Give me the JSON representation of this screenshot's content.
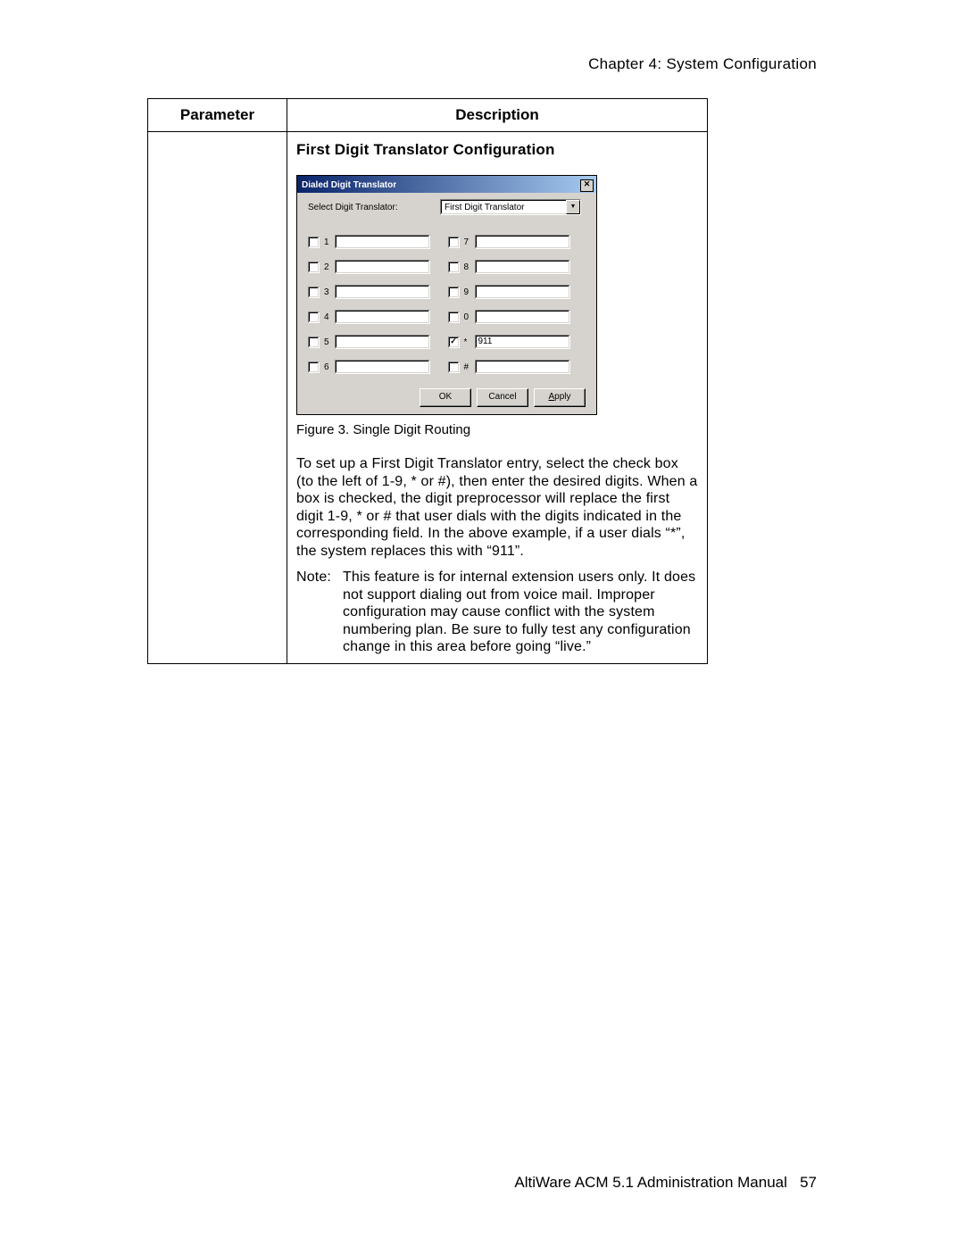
{
  "header": {
    "chapter": "Chapter 4:  System Configuration"
  },
  "table": {
    "col_parameter": "Parameter",
    "col_description": "Description",
    "section_heading": "First Digit Translator Configuration"
  },
  "dialog": {
    "title": "Dialed Digit Translator",
    "select_label": "Select Digit Translator:",
    "select_value": "First Digit Translator",
    "digits_left": [
      {
        "label": "1",
        "checked": false,
        "value": ""
      },
      {
        "label": "2",
        "checked": false,
        "value": ""
      },
      {
        "label": "3",
        "checked": false,
        "value": ""
      },
      {
        "label": "4",
        "checked": false,
        "value": ""
      },
      {
        "label": "5",
        "checked": false,
        "value": ""
      },
      {
        "label": "6",
        "checked": false,
        "value": ""
      }
    ],
    "digits_right": [
      {
        "label": "7",
        "checked": false,
        "value": ""
      },
      {
        "label": "8",
        "checked": false,
        "value": ""
      },
      {
        "label": "9",
        "checked": false,
        "value": ""
      },
      {
        "label": "0",
        "checked": false,
        "value": ""
      },
      {
        "label": "*",
        "checked": true,
        "value": "911"
      },
      {
        "label": "#",
        "checked": false,
        "value": ""
      }
    ],
    "btn_ok": "OK",
    "btn_cancel": "Cancel",
    "btn_apply": "Apply"
  },
  "figure_caption": "Figure 3.   Single Digit Routing",
  "paragraph": "To set up a First Digit Translator entry, select the check box (to the left of 1-9, * or #), then enter the desired digits. When a box is checked, the digit preprocessor will replace the first digit 1-9, * or # that user dials with the digits indicated in the corresponding field. In the above example, if a user dials “*”, the system replaces this with “911”.",
  "note_label": "Note:",
  "note_text": "This feature is for internal extension users only. It does not support dialing out from voice mail. Improper configuration may cause conflict with the system numbering plan. Be sure to fully test any configuration change in this area before going “live.”",
  "footer": {
    "text": "AltiWare ACM 5.1 Administration Manual",
    "page": "57"
  },
  "colors": {
    "page_bg": "#ffffff",
    "dialog_bg": "#d6d3ce",
    "titlebar_gradient_from": "#0a246a",
    "titlebar_gradient_to": "#a6caf0",
    "text": "#000000",
    "input_bg": "#ffffff"
  }
}
